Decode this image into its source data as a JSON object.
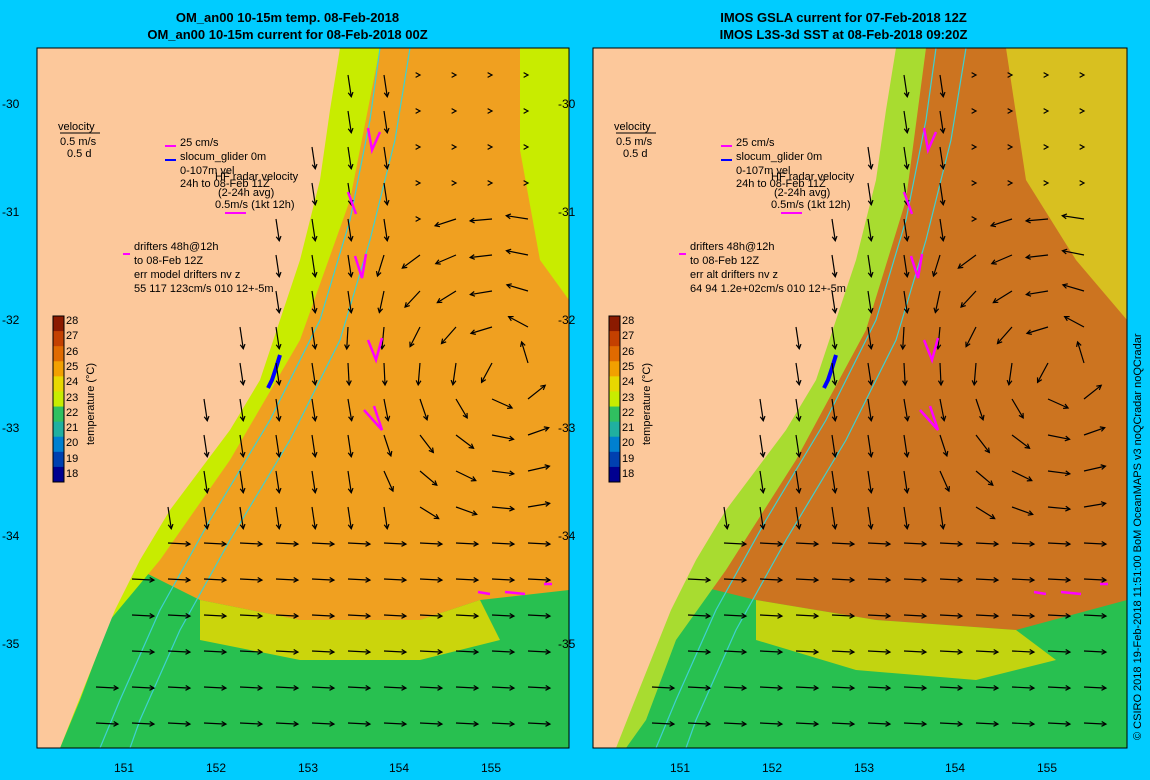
{
  "left_panel": {
    "title_line1": "OM_an00 10-15m temp. 08-Feb-2018",
    "title_line2": "OM_an00 10-15m current for 08-Feb-2018 00Z",
    "drifter_line3": "err model drifters nv z",
    "drifter_line4": "55 117 123cm/s 010 12+-5m"
  },
  "right_panel": {
    "title_line1": "IMOS GSLA current for 07-Feb-2018 12Z",
    "title_line2": "IMOS L3S-3d SST at 08-Feb-2018 09:20Z",
    "drifter_line3": "err alt drifters nv z",
    "drifter_line4": "64 94 1.2e+02cm/s 010 12+-5m"
  },
  "legend": {
    "velocity_label": "velocity",
    "velocity_speed": "0.5 m/s",
    "velocity_time": "0.5 d",
    "glider_speed": "25 cm/s",
    "glider_name": "slocum_glider 0m",
    "glider_depth": "0-107m vel",
    "radar_title": "HF radar velocity",
    "radar_period": "24h to 08-Feb 11Z",
    "radar_avg": "(2-24h avg)",
    "radar_scale": "0.5m/s (1kt 12h)",
    "drifter_line1": "drifters 48h@12h",
    "drifter_line2": "to 08-Feb 12Z"
  },
  "colorbar": {
    "label": "temperature (°C)",
    "ticks": [
      "28",
      "27",
      "26",
      "25",
      "24",
      "23",
      "22",
      "21",
      "20",
      "19",
      "18"
    ],
    "colors": [
      "#8b1a00",
      "#c44000",
      "#e06a00",
      "#f2a000",
      "#e8d800",
      "#c8ec00",
      "#30c060",
      "#20b0a0",
      "#0080d0",
      "#0040b0",
      "#000090"
    ]
  },
  "axes": {
    "lat_ticks": [
      "-30",
      "-31",
      "-32",
      "-33",
      "-34",
      "-35"
    ],
    "lon_ticks": [
      "151",
      "152",
      "153",
      "154",
      "155"
    ]
  },
  "credit": "© CSIRO 2018   19-Feb-2018 11:51:00 BoM OceanMAPS v3 noQCradar noQCradar",
  "colors": {
    "background": "#00ccff",
    "land": "#fcc89b",
    "warm_core": "#f0a020",
    "cool_shelf": "#28c050",
    "isobath": "#40d0d0",
    "glider": "#0000ff",
    "radar_drifter": "#ff00ff"
  }
}
